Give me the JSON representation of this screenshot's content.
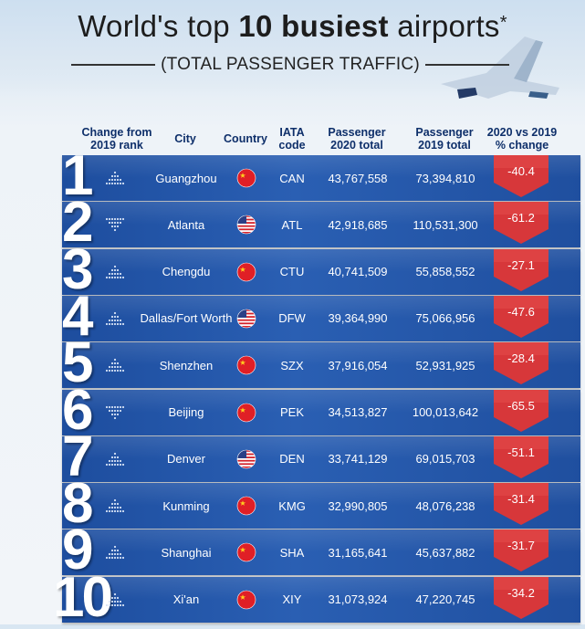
{
  "header": {
    "title_pre": "World's top ",
    "title_bold": "10 busiest",
    "title_post": " airports",
    "title_mark": "*",
    "subtitle": "(TOTAL PASSENGER TRAFFIC)"
  },
  "columns": {
    "change": "Change from 2019 rank",
    "city": "City",
    "country": "Country",
    "iata": "IATA code",
    "p2020": "Passenger 2020 total",
    "p2019": "Passenger 2019 total",
    "pct": "2020 vs 2019 % change"
  },
  "colors": {
    "bar": "#2a5fb3",
    "change_box": "#d93a3a",
    "header_text": "#0e2f6a"
  },
  "chart_data": {
    "type": "table",
    "title": "World's top 10 busiest airports*",
    "subtitle": "(TOTAL PASSENGER TRAFFIC)",
    "rows": [
      {
        "rank": "1",
        "trend": "up",
        "city": "Guangzhou",
        "country": "china-flag",
        "iata": "CAN",
        "p2020": "43,767,558",
        "p2019": "73,394,810",
        "pct": "-40.4"
      },
      {
        "rank": "2",
        "trend": "down",
        "city": "Atlanta",
        "country": "usa-flag",
        "iata": "ATL",
        "p2020": "42,918,685",
        "p2019": "110,531,300",
        "pct": "-61.2"
      },
      {
        "rank": "3",
        "trend": "up",
        "city": "Chengdu",
        "country": "china-flag",
        "iata": "CTU",
        "p2020": "40,741,509",
        "p2019": "55,858,552",
        "pct": "-27.1"
      },
      {
        "rank": "4",
        "trend": "up",
        "city": "Dallas/Fort Worth",
        "country": "usa-flag",
        "iata": "DFW",
        "p2020": "39,364,990",
        "p2019": "75,066,956",
        "pct": "-47.6"
      },
      {
        "rank": "5",
        "trend": "up",
        "city": "Shenzhen",
        "country": "china-flag",
        "iata": "SZX",
        "p2020": "37,916,054",
        "p2019": "52,931,925",
        "pct": "-28.4"
      },
      {
        "rank": "6",
        "trend": "down",
        "city": "Beijing",
        "country": "china-flag",
        "iata": "PEK",
        "p2020": "34,513,827",
        "p2019": "100,013,642",
        "pct": "-65.5"
      },
      {
        "rank": "7",
        "trend": "up",
        "city": "Denver",
        "country": "usa-flag",
        "iata": "DEN",
        "p2020": "33,741,129",
        "p2019": "69,015,703",
        "pct": "-51.1"
      },
      {
        "rank": "8",
        "trend": "up",
        "city": "Kunming",
        "country": "china-flag",
        "iata": "KMG",
        "p2020": "32,990,805",
        "p2019": "48,076,238",
        "pct": "-31.4"
      },
      {
        "rank": "9",
        "trend": "up",
        "city": "Shanghai",
        "country": "china-flag",
        "iata": "SHA",
        "p2020": "31,165,641",
        "p2019": "45,637,882",
        "pct": "-31.7"
      },
      {
        "rank": "10",
        "trend": "up",
        "city": "Xi'an",
        "country": "china-flag",
        "iata": "XIY",
        "p2020": "31,073,924",
        "p2019": "47,220,745",
        "pct": "-34.2"
      }
    ]
  }
}
